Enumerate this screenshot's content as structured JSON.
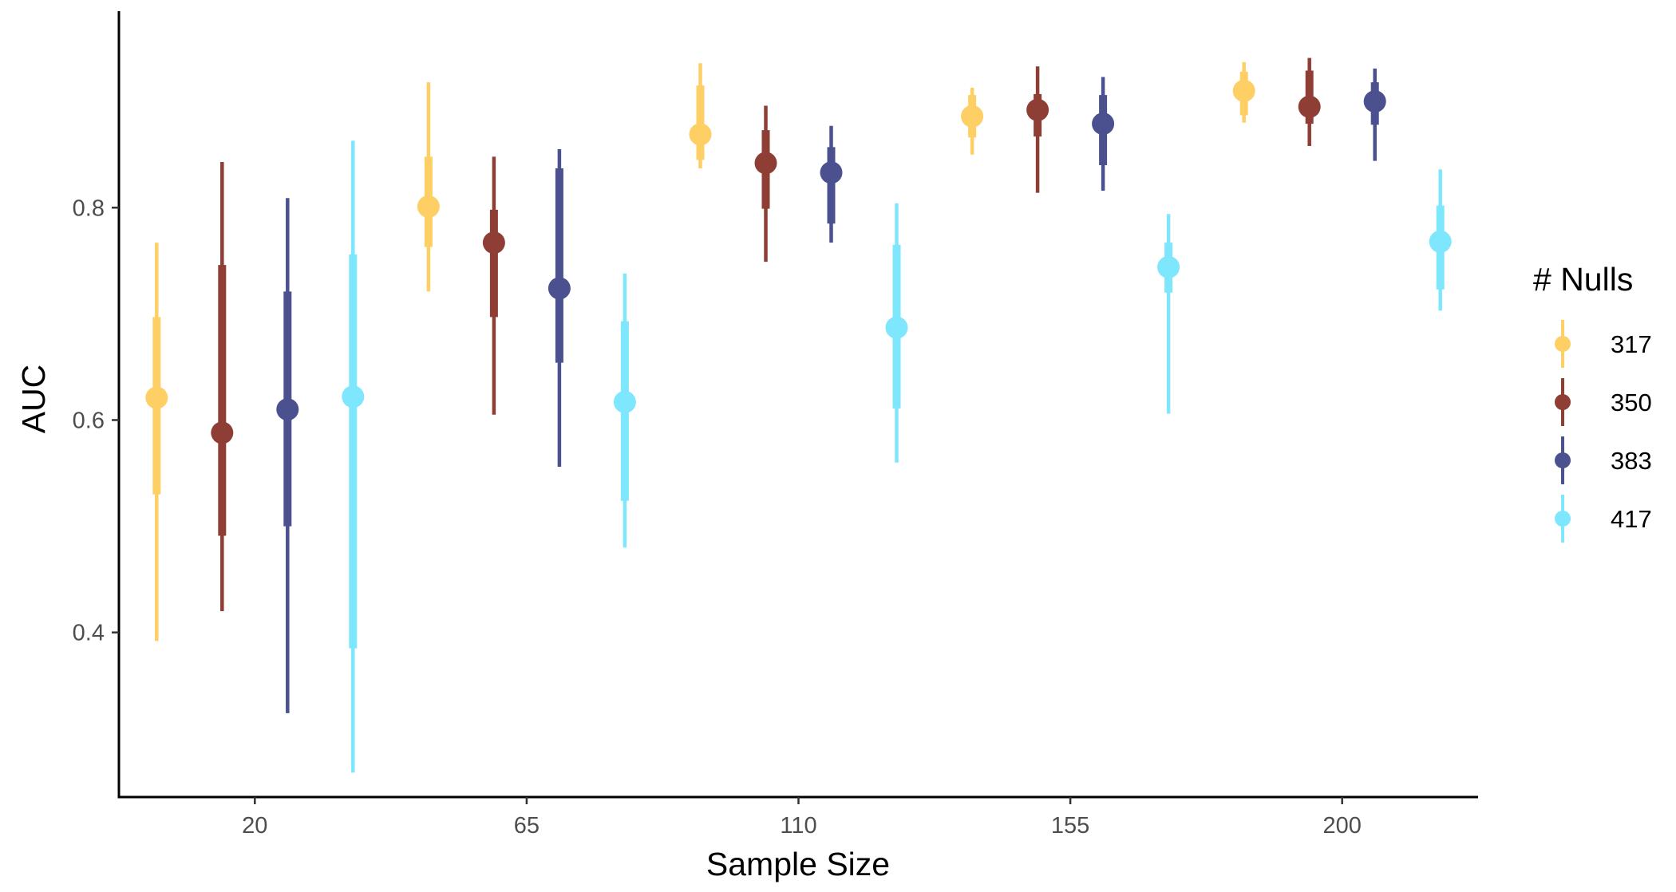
{
  "chart_data": {
    "type": "scatter",
    "title": "",
    "xlabel": "Sample Size",
    "ylabel": "AUC",
    "categories": [
      "20",
      "65",
      "110",
      "155",
      "200"
    ],
    "ylim": [
      0.245,
      0.985
    ],
    "yticks": [
      0.4,
      0.6,
      0.8
    ],
    "ytick_labels": [
      "0.4",
      "0.6",
      "0.8"
    ],
    "grid": false,
    "legend": {
      "title": "# Nulls",
      "position": "right"
    },
    "series": [
      {
        "name": "317",
        "color": "#FECF65",
        "points": [
          {
            "x": "20",
            "y": 0.621,
            "inner": [
              0.53,
              0.697
            ],
            "outer": [
              0.392,
              0.767
            ]
          },
          {
            "x": "65",
            "y": 0.801,
            "inner": [
              0.763,
              0.848
            ],
            "outer": [
              0.721,
              0.918
            ]
          },
          {
            "x": "110",
            "y": 0.869,
            "inner": [
              0.845,
              0.915
            ],
            "outer": [
              0.837,
              0.936
            ]
          },
          {
            "x": "155",
            "y": 0.886,
            "inner": [
              0.866,
              0.906
            ],
            "outer": [
              0.85,
              0.913
            ]
          },
          {
            "x": "200",
            "y": 0.91,
            "inner": [
              0.887,
              0.928
            ],
            "outer": [
              0.88,
              0.937
            ]
          }
        ]
      },
      {
        "name": "350",
        "color": "#8E3E35",
        "points": [
          {
            "x": "20",
            "y": 0.588,
            "inner": [
              0.491,
              0.746
            ],
            "outer": [
              0.42,
              0.843
            ]
          },
          {
            "x": "65",
            "y": 0.767,
            "inner": [
              0.697,
              0.798
            ],
            "outer": [
              0.605,
              0.848
            ]
          },
          {
            "x": "110",
            "y": 0.842,
            "inner": [
              0.799,
              0.873
            ],
            "outer": [
              0.749,
              0.896
            ]
          },
          {
            "x": "155",
            "y": 0.892,
            "inner": [
              0.867,
              0.907
            ],
            "outer": [
              0.814,
              0.933
            ]
          },
          {
            "x": "200",
            "y": 0.895,
            "inner": [
              0.879,
              0.929
            ],
            "outer": [
              0.858,
              0.941
            ]
          }
        ]
      },
      {
        "name": "383",
        "color": "#4B508F",
        "points": [
          {
            "x": "20",
            "y": 0.61,
            "inner": [
              0.5,
              0.721
            ],
            "outer": [
              0.324,
              0.809
            ]
          },
          {
            "x": "65",
            "y": 0.724,
            "inner": [
              0.654,
              0.837
            ],
            "outer": [
              0.556,
              0.855
            ]
          },
          {
            "x": "110",
            "y": 0.833,
            "inner": [
              0.785,
              0.857
            ],
            "outer": [
              0.767,
              0.877
            ]
          },
          {
            "x": "155",
            "y": 0.879,
            "inner": [
              0.84,
              0.906
            ],
            "outer": [
              0.816,
              0.923
            ]
          },
          {
            "x": "200",
            "y": 0.9,
            "inner": [
              0.878,
              0.918
            ],
            "outer": [
              0.844,
              0.931
            ]
          }
        ]
      },
      {
        "name": "417",
        "color": "#7EE6FD",
        "points": [
          {
            "x": "20",
            "y": 0.622,
            "inner": [
              0.385,
              0.756
            ],
            "outer": [
              0.268,
              0.863
            ]
          },
          {
            "x": "65",
            "y": 0.617,
            "inner": [
              0.524,
              0.693
            ],
            "outer": [
              0.48,
              0.738
            ]
          },
          {
            "x": "110",
            "y": 0.687,
            "inner": [
              0.611,
              0.765
            ],
            "outer": [
              0.56,
              0.804
            ]
          },
          {
            "x": "155",
            "y": 0.744,
            "inner": [
              0.72,
              0.767
            ],
            "outer": [
              0.606,
              0.794
            ]
          },
          {
            "x": "200",
            "y": 0.768,
            "inner": [
              0.723,
              0.802
            ],
            "outer": [
              0.703,
              0.836
            ]
          }
        ]
      }
    ]
  }
}
